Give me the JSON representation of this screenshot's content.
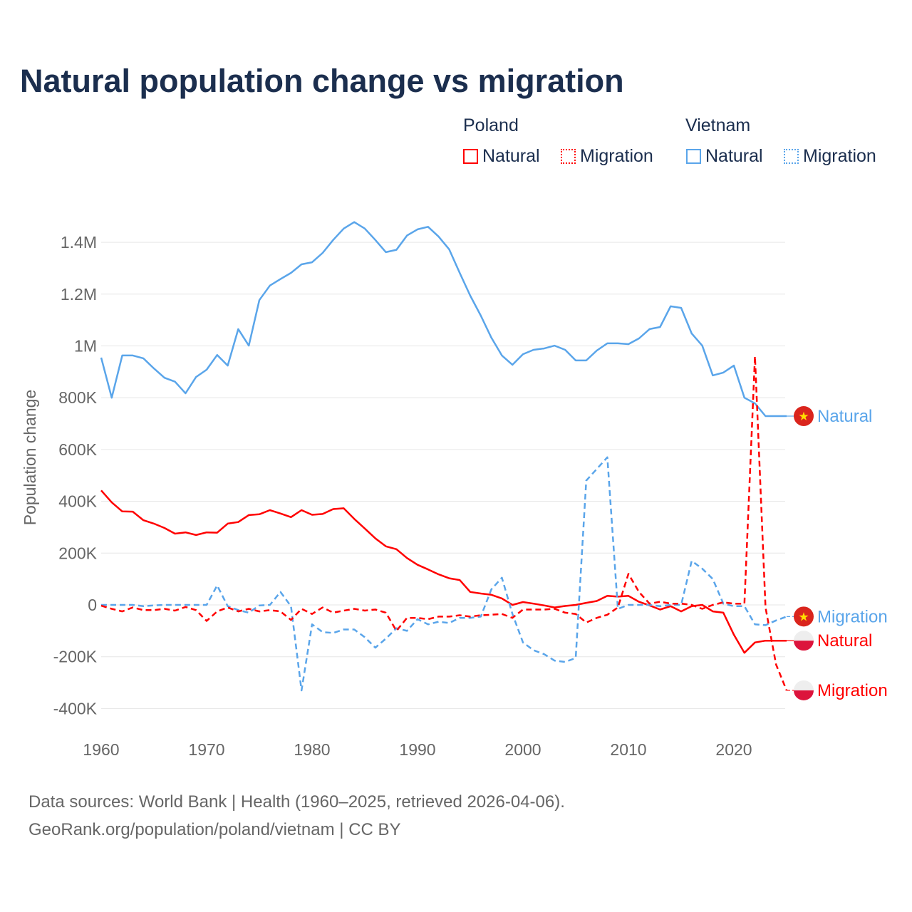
{
  "colors": {
    "poland": "#ff0000",
    "vietnam": "#5aa5ea",
    "title": "#1b2e4e",
    "grid": "#e6e6e6",
    "axis_text": "#666666"
  },
  "legend": {
    "groups": [
      {
        "label": "Poland",
        "items": [
          {
            "label": "Natural",
            "style": "solid"
          },
          {
            "label": "Migration",
            "style": "dotted"
          }
        ]
      },
      {
        "label": "Vietnam",
        "items": [
          {
            "label": "Natural",
            "style": "solid"
          },
          {
            "label": "Migration",
            "style": "dotted"
          }
        ]
      }
    ]
  },
  "footer": {
    "line1": "Data sources: World Bank | Health (1960–2025, retrieved 2026-04-06).",
    "line2": "GeoRank.org/population/poland/vietnam | CC BY"
  },
  "chart_data": {
    "type": "line",
    "title": "Natural population change vs migration",
    "xlabel": "",
    "ylabel": "Population change",
    "xlim": [
      1960,
      2025
    ],
    "ylim": [
      -400000,
      1500000
    ],
    "grid": true,
    "legend_position": "top-right",
    "x_ticks": [
      {
        "v": 1960,
        "label": "1960"
      },
      {
        "v": 1970,
        "label": "1970"
      },
      {
        "v": 1980,
        "label": "1980"
      },
      {
        "v": 1990,
        "label": "1990"
      },
      {
        "v": 2000,
        "label": "2000"
      },
      {
        "v": 2010,
        "label": "2010"
      },
      {
        "v": 2020,
        "label": "2020"
      }
    ],
    "y_ticks": [
      {
        "v": 1400000,
        "label": "1.4M"
      },
      {
        "v": 1200000,
        "label": "1.2M"
      },
      {
        "v": 1000000,
        "label": "1M"
      },
      {
        "v": 800000,
        "label": "800K"
      },
      {
        "v": 600000,
        "label": "600K"
      },
      {
        "v": 400000,
        "label": "400K"
      },
      {
        "v": 200000,
        "label": "200K"
      },
      {
        "v": 0,
        "label": "0"
      },
      {
        "v": -200000,
        "label": "-200K"
      },
      {
        "v": -400000,
        "label": "-400K"
      }
    ],
    "x_start": 1960,
    "series": [
      {
        "name": "Vietnam Natural",
        "country": "vietnam",
        "kind": "natural",
        "dashed": false,
        "end_label": "Natural",
        "values": [
          955000,
          800000,
          963000,
          963000,
          952000,
          913000,
          877000,
          862000,
          817000,
          880000,
          908000,
          965000,
          924000,
          1065000,
          1001000,
          1177000,
          1233000,
          1258000,
          1282000,
          1315000,
          1323000,
          1359000,
          1409000,
          1453000,
          1478000,
          1453000,
          1409000,
          1362000,
          1371000,
          1426000,
          1450000,
          1460000,
          1422000,
          1373000,
          1282000,
          1194000,
          1117000,
          1032000,
          963000,
          927000,
          968000,
          985000,
          990000,
          1001000,
          985000,
          944000,
          944000,
          982000,
          1010000,
          1010000,
          1007000,
          1029000,
          1065000,
          1073000,
          1153000,
          1147000,
          1048000,
          1001000,
          886000,
          897000,
          924000,
          800000,
          778000,
          729000,
          729000,
          729000
        ]
      },
      {
        "name": "Vietnam Migration",
        "country": "vietnam",
        "kind": "migration",
        "dashed": true,
        "end_label": "Migration",
        "values": [
          0,
          0,
          0,
          0,
          -5000,
          -2000,
          0,
          0,
          0,
          0,
          0,
          75000,
          -5000,
          -20000,
          -30000,
          -2000,
          0,
          50000,
          -5000,
          -330000,
          -75000,
          -105000,
          -108000,
          -95000,
          -95000,
          -125000,
          -165000,
          -130000,
          -90000,
          -100000,
          -55000,
          -75000,
          -65000,
          -70000,
          -50000,
          -50000,
          -45000,
          60000,
          105000,
          -35000,
          -145000,
          -175000,
          -190000,
          -215000,
          -220000,
          -205000,
          480000,
          525000,
          570000,
          -15000,
          0,
          0,
          0,
          -5000,
          0,
          0,
          170000,
          140000,
          100000,
          5000,
          -5000,
          -5000,
          -75000,
          -78000,
          -60000,
          -45000
        ]
      },
      {
        "name": "Poland Natural",
        "country": "poland",
        "kind": "natural",
        "dashed": false,
        "end_label": "Natural",
        "values": [
          442000,
          396000,
          361000,
          360000,
          327000,
          314000,
          297000,
          275000,
          280000,
          270000,
          280000,
          279000,
          314000,
          320000,
          347000,
          350000,
          366000,
          353000,
          339000,
          366000,
          348000,
          351000,
          370000,
          373000,
          332000,
          295000,
          257000,
          226000,
          215000,
          181000,
          155000,
          137000,
          118000,
          103000,
          96000,
          50000,
          44000,
          39000,
          25000,
          0,
          11000,
          5000,
          -2000,
          -10000,
          -4000,
          0,
          8000,
          15000,
          35000,
          32000,
          35000,
          12000,
          -2000,
          -18000,
          -5000,
          -25000,
          -5000,
          0,
          -25000,
          -30000,
          -115000,
          -185000,
          -145000,
          -138000,
          -138000,
          -138000
        ]
      },
      {
        "name": "Poland Migration",
        "country": "poland",
        "kind": "migration",
        "dashed": true,
        "end_label": "Migration",
        "values": [
          -3000,
          -15000,
          -25000,
          -10000,
          -20000,
          -20000,
          -15000,
          -22000,
          -8000,
          -20000,
          -62000,
          -25000,
          -10000,
          -25000,
          -15000,
          -25000,
          -20000,
          -25000,
          -58000,
          -15000,
          -35000,
          -10000,
          -30000,
          -22000,
          -15000,
          -22000,
          -18000,
          -30000,
          -100000,
          -50000,
          -50000,
          -55000,
          -45000,
          -45000,
          -40000,
          -45000,
          -40000,
          -38000,
          -35000,
          -50000,
          -18000,
          -18000,
          -18000,
          -15000,
          -30000,
          -35000,
          -68000,
          -50000,
          -38000,
          -10000,
          120000,
          50000,
          5000,
          12000,
          5000,
          5000,
          0,
          -15000,
          0,
          10000,
          5000,
          5000,
          960000,
          -10000,
          -230000,
          -330000
        ]
      }
    ]
  }
}
